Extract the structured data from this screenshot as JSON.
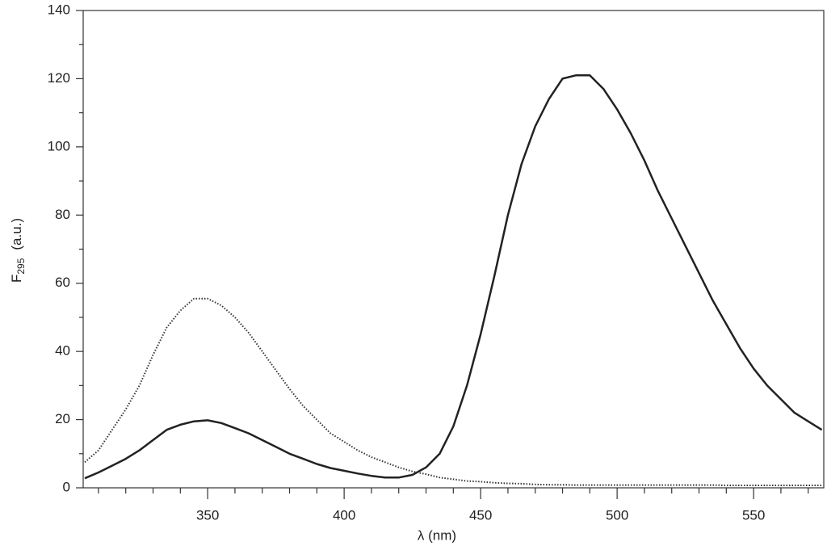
{
  "chart_data": {
    "type": "line",
    "xlabel": "λ  (nm)",
    "ylabel": {
      "main": "F",
      "sub": "295",
      "unit": "(a.u.)"
    },
    "x": [
      305,
      310,
      315,
      320,
      325,
      330,
      335,
      340,
      345,
      350,
      355,
      360,
      365,
      370,
      375,
      380,
      385,
      390,
      395,
      400,
      405,
      410,
      415,
      420,
      425,
      430,
      435,
      440,
      445,
      450,
      455,
      460,
      465,
      470,
      475,
      480,
      485,
      490,
      495,
      500,
      505,
      510,
      515,
      520,
      525,
      530,
      535,
      540,
      545,
      550,
      555,
      560,
      565,
      570,
      575
    ],
    "series": [
      {
        "color": "#222222",
        "dash": "solid",
        "values": [
          2.8,
          4.5,
          6.5,
          8.5,
          11,
          14,
          17,
          18.5,
          19.5,
          19.8,
          19,
          17.5,
          16,
          14,
          12,
          10,
          8.5,
          7,
          5.8,
          5,
          4.2,
          3.5,
          3,
          3,
          3.8,
          6,
          10,
          18,
          30,
          45,
          62,
          80,
          95,
          106,
          114,
          120,
          121,
          121,
          117,
          111,
          104,
          96,
          87,
          79,
          71,
          63,
          55,
          48,
          41,
          35,
          30,
          26,
          22,
          19.5,
          17
        ]
      },
      {
        "color": "#333333",
        "dash": "dotted",
        "values": [
          7.5,
          11,
          17,
          23,
          30,
          39,
          47,
          52,
          55.5,
          55.5,
          53.5,
          50,
          45.5,
          40,
          34.5,
          29,
          24,
          20,
          16,
          13.5,
          11,
          9,
          7.5,
          6,
          4.8,
          4,
          3,
          2.5,
          2,
          1.8,
          1.5,
          1.3,
          1.2,
          1,
          0.9,
          0.9,
          0.8,
          0.8,
          0.8,
          0.8,
          0.8,
          0.8,
          0.8,
          0.8,
          0.8,
          0.8,
          0.8,
          0.7,
          0.7,
          0.7,
          0.7,
          0.7,
          0.7,
          0.7,
          0.7
        ]
      }
    ],
    "xlim": [
      304.4,
      575.7
    ],
    "ylim": [
      0,
      140
    ],
    "xticks": [
      350,
      400,
      450,
      500,
      550
    ],
    "xminorticks": [
      310,
      320,
      330,
      340,
      360,
      370,
      380,
      390,
      410,
      420,
      430,
      440,
      460,
      470,
      480,
      490,
      510,
      520,
      530,
      540,
      560,
      570
    ],
    "yticks": [
      0,
      20,
      40,
      60,
      80,
      100,
      120,
      140
    ],
    "yminorticks": [
      10,
      30,
      50,
      70,
      90,
      110,
      130
    ]
  }
}
